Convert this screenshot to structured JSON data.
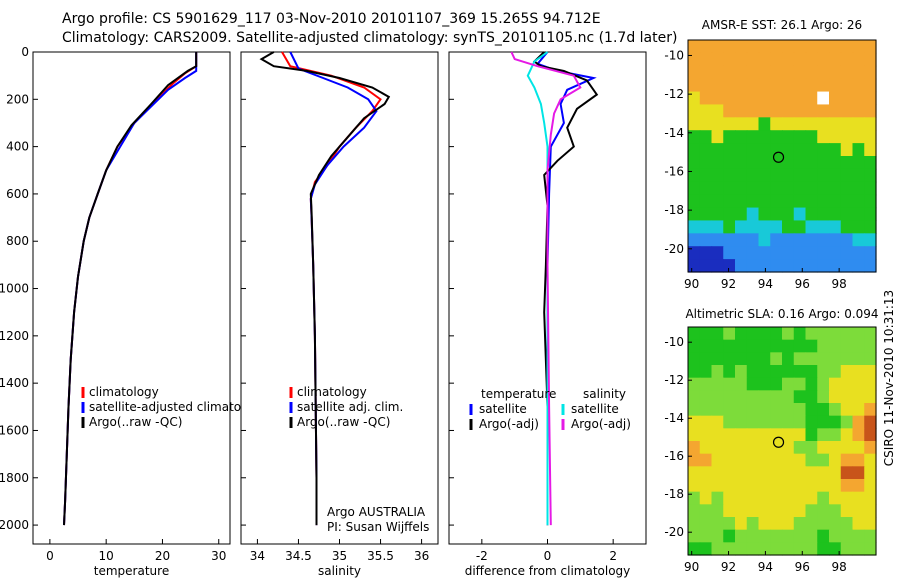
{
  "title": {
    "line1": "Argo profile: CS 5901629_117 03-Nov-2010 20101107_369 15.265S 94.712E",
    "line2": "Climatology: CARS2009. Satellite-adjusted climatology: synTS_20101105.nc (1.7d later)"
  },
  "stamp": "CSIRO 11-Nov-2010 10:31:13",
  "colors": {
    "climatology": "#ff0000",
    "satellite": "#0000ff",
    "argo": "#000000",
    "sal_satellite": "#00e5e5",
    "sal_argo": "#e519e5"
  },
  "chart_data": [
    {
      "type": "line",
      "xlabel": "temperature",
      "ylabel": "",
      "xlim": [
        -3,
        32
      ],
      "ylim": [
        2080,
        0
      ],
      "xticks": [
        0,
        10,
        20,
        30
      ],
      "yticks": [
        0,
        200,
        400,
        600,
        800,
        1000,
        1200,
        1400,
        1600,
        1800,
        2000
      ],
      "legend": [
        "climatology",
        "satellite-adjusted climatology",
        "Argo(..raw -QC)"
      ],
      "series": [
        {
          "name": "climatology",
          "color": "#ff0000",
          "points": [
            [
              26,
              0
            ],
            [
              26,
              60
            ],
            [
              24,
              90
            ],
            [
              22,
              130
            ],
            [
              19,
              200
            ],
            [
              15,
              300
            ],
            [
              12,
              400
            ],
            [
              10,
              500
            ],
            [
              8.5,
              600
            ],
            [
              7,
              700
            ],
            [
              6,
              800
            ],
            [
              5,
              950
            ],
            [
              4.3,
              1100
            ],
            [
              3.7,
              1300
            ],
            [
              3.3,
              1500
            ],
            [
              3,
              1700
            ],
            [
              2.7,
              1900
            ],
            [
              2.5,
              2000
            ]
          ]
        },
        {
          "name": "satellite-adjusted climatology",
          "color": "#0000ff",
          "points": [
            [
              26,
              0
            ],
            [
              26,
              80
            ],
            [
              24,
              110
            ],
            [
              21,
              160
            ],
            [
              18,
              230
            ],
            [
              15,
              300
            ],
            [
              12.5,
              400
            ],
            [
              10,
              500
            ],
            [
              8.5,
              600
            ],
            [
              7,
              700
            ],
            [
              6,
              800
            ],
            [
              5,
              950
            ],
            [
              4.3,
              1100
            ],
            [
              3.7,
              1300
            ],
            [
              3.3,
              1500
            ],
            [
              3,
              1700
            ],
            [
              2.7,
              1900
            ],
            [
              2.5,
              2000
            ]
          ]
        },
        {
          "name": "Argo(..raw -QC)",
          "color": "#000000",
          "points": [
            [
              26,
              0
            ],
            [
              26,
              60
            ],
            [
              24.5,
              80
            ],
            [
              21,
              140
            ],
            [
              18,
              220
            ],
            [
              14.5,
              310
            ],
            [
              12,
              400
            ],
            [
              10,
              500
            ],
            [
              8.5,
              600
            ],
            [
              7,
              700
            ],
            [
              6,
              800
            ],
            [
              5,
              950
            ],
            [
              4.3,
              1100
            ],
            [
              3.7,
              1300
            ],
            [
              3.3,
              1500
            ],
            [
              3,
              1700
            ],
            [
              2.7,
              1900
            ],
            [
              2.5,
              2000
            ]
          ]
        }
      ]
    },
    {
      "type": "line",
      "xlabel": "salinity",
      "xlim": [
        33.8,
        36.2
      ],
      "ylim": [
        2080,
        0
      ],
      "xticks": [
        34,
        34.5,
        35,
        35.5,
        36
      ],
      "yticks": [
        0,
        200,
        400,
        600,
        800,
        1000,
        1200,
        1400,
        1600,
        1800,
        2000
      ],
      "legend": [
        "climatology",
        "satellite adj. clim.",
        "Argo(..raw -QC)"
      ],
      "credit": [
        "Argo AUSTRALIA",
        "PI: Susan Wijffels"
      ],
      "series": [
        {
          "name": "climatology",
          "color": "#ff0000",
          "points": [
            [
              34.3,
              0
            ],
            [
              34.4,
              60
            ],
            [
              34.9,
              100
            ],
            [
              35.3,
              150
            ],
            [
              35.5,
              200
            ],
            [
              35.4,
              250
            ],
            [
              35.2,
              320
            ],
            [
              35.0,
              400
            ],
            [
              34.85,
              480
            ],
            [
              34.7,
              550
            ],
            [
              34.65,
              620
            ],
            [
              34.66,
              700
            ],
            [
              34.68,
              900
            ],
            [
              34.7,
              1200
            ],
            [
              34.71,
              1500
            ],
            [
              34.72,
              1800
            ],
            [
              34.72,
              2000
            ]
          ]
        },
        {
          "name": "satellite adj. clim.",
          "color": "#0000ff",
          "points": [
            [
              34.4,
              0
            ],
            [
              34.5,
              70
            ],
            [
              34.8,
              110
            ],
            [
              35.1,
              150
            ],
            [
              35.35,
              200
            ],
            [
              35.45,
              250
            ],
            [
              35.3,
              320
            ],
            [
              35.05,
              400
            ],
            [
              34.85,
              480
            ],
            [
              34.7,
              560
            ],
            [
              34.65,
              620
            ],
            [
              34.66,
              700
            ],
            [
              34.68,
              900
            ],
            [
              34.7,
              1200
            ],
            [
              34.71,
              1500
            ],
            [
              34.72,
              1800
            ],
            [
              34.72,
              2000
            ]
          ]
        },
        {
          "name": "Argo(..raw -QC)",
          "color": "#000000",
          "points": [
            [
              34.2,
              0
            ],
            [
              34.05,
              30
            ],
            [
              34.2,
              60
            ],
            [
              34.6,
              80
            ],
            [
              35.0,
              110
            ],
            [
              35.4,
              150
            ],
            [
              35.6,
              190
            ],
            [
              35.55,
              220
            ],
            [
              35.3,
              280
            ],
            [
              35.1,
              360
            ],
            [
              34.9,
              440
            ],
            [
              34.75,
              520
            ],
            [
              34.65,
              600
            ],
            [
              34.66,
              680
            ],
            [
              34.68,
              900
            ],
            [
              34.7,
              1200
            ],
            [
              34.71,
              1500
            ],
            [
              34.72,
              1800
            ],
            [
              34.72,
              2000
            ]
          ]
        }
      ]
    },
    {
      "type": "line",
      "xlabel": "difference from climatology",
      "xlim": [
        -3,
        3
      ],
      "ylim": [
        2080,
        0
      ],
      "xticks": [
        -2,
        0,
        2
      ],
      "yticks": [
        0,
        200,
        400,
        600,
        800,
        1000,
        1200,
        1400,
        1600,
        1800,
        2000
      ],
      "legend_groups": [
        {
          "heading": "temperature",
          "items": [
            "satellite",
            "Argo(-adj)"
          ]
        },
        {
          "heading": "salinity",
          "items": [
            "satellite",
            "Argo(-adj)"
          ]
        }
      ],
      "series": [
        {
          "name": "temperature satellite",
          "color": "#0000ff",
          "points": [
            [
              0,
              0
            ],
            [
              -0.3,
              50
            ],
            [
              0.3,
              80
            ],
            [
              1.4,
              110
            ],
            [
              0.6,
              160
            ],
            [
              0.4,
              220
            ],
            [
              0.5,
              300
            ],
            [
              0.1,
              400
            ],
            [
              0.05,
              600
            ],
            [
              0,
              900
            ],
            [
              0,
              1500
            ],
            [
              0,
              2000
            ]
          ]
        },
        {
          "name": "temperature Argo(-adj)",
          "color": "#000000",
          "points": [
            [
              -0.1,
              0
            ],
            [
              -0.4,
              40
            ],
            [
              -0.2,
              60
            ],
            [
              0.5,
              80
            ],
            [
              1.2,
              120
            ],
            [
              1.5,
              180
            ],
            [
              0.9,
              240
            ],
            [
              0.6,
              320
            ],
            [
              0.8,
              400
            ],
            [
              0.3,
              460
            ],
            [
              -0.1,
              520
            ],
            [
              0,
              650
            ],
            [
              -0.05,
              900
            ],
            [
              -0.1,
              1100
            ],
            [
              0,
              1500
            ],
            [
              0,
              2000
            ]
          ]
        },
        {
          "name": "salinity satellite",
          "color": "#00e5e5",
          "points": [
            [
              0,
              0
            ],
            [
              -0.4,
              40
            ],
            [
              -0.6,
              100
            ],
            [
              -0.4,
              150
            ],
            [
              -0.2,
              220
            ],
            [
              -0.1,
              300
            ],
            [
              0,
              400
            ],
            [
              0,
              700
            ],
            [
              0,
              1200
            ],
            [
              0,
              2000
            ]
          ]
        },
        {
          "name": "salinity Argo(-adj)",
          "color": "#e519e5",
          "points": [
            [
              -1.1,
              0
            ],
            [
              -1.0,
              30
            ],
            [
              -0.3,
              60
            ],
            [
              0.8,
              100
            ],
            [
              1.0,
              150
            ],
            [
              0.4,
              200
            ],
            [
              0.2,
              260
            ],
            [
              0.1,
              350
            ],
            [
              0,
              500
            ],
            [
              0,
              900
            ],
            [
              0.05,
              1500
            ],
            [
              0.1,
              2000
            ]
          ]
        }
      ]
    },
    {
      "type": "heatmap",
      "title": "AMSR-E SST: 26.1  Argo: 26",
      "xticks": [
        90,
        92,
        94,
        96,
        98
      ],
      "yticks": [
        -10,
        -12,
        -14,
        -16,
        -18,
        -20
      ],
      "xlim": [
        89.8,
        100
      ],
      "ylim": [
        -21.2,
        -9.2
      ],
      "marker": [
        94.712,
        -15.265
      ],
      "grid_rows": [
        "OOOOOOOOOOOOOOOO",
        "OOOOOOOOOOOOOOOO",
        "OOOOOOOOOOOOOOOO",
        "OOOOOOOOOOOOOOOO",
        "YOOOOOOOOOOWOOOO",
        "YYYOOOOOOOOOOOOO",
        "YYYYYYGYYYYYYYYY",
        "GGYGGGGGGGGYYYYY",
        "GGGGGGGGGGGGGYGY",
        "GGGGGGGGGGGGGGGG",
        "GGGGGGGGGGGGGGGG",
        "GGGGGGGGGGGGGGGG",
        "GGGGGGGGGGGGGGGG",
        "GGGGGCGGGCGGGGGG",
        "CCCGCCCCGGCCCGGG",
        "BBBBBBCBBBBBBBCC",
        "NNNBBBBBBBBBBBBB",
        "NNNNBBBBBBBBBBBB"
      ]
    },
    {
      "type": "heatmap",
      "title": "Altimetric SLA: 0.16  Argo: 0.094",
      "xticks": [
        90,
        92,
        94,
        96,
        98
      ],
      "yticks": [
        -10,
        -12,
        -14,
        -16,
        -18,
        -20
      ],
      "xlim": [
        89.8,
        100
      ],
      "ylim": [
        -21.2,
        -9.2
      ],
      "marker": [
        94.712,
        -15.265
      ],
      "grid_rows": [
        "GGGLGGGGLGLLLLLL",
        "GGGGGGGGGGGLLLLL",
        "GGGGGGGLGLLLLLLL",
        "GGLGLGGGGGGLLYYY",
        "LLLLLGGGLLGLYYYY",
        "LLLLLLLLLGGLYYYY",
        "LLLLLLLLLLGGLYYO",
        "YYYLLLLLLLGGGLOR",
        "YYYYYYYYYYGLLYOR",
        "OYYYYYYYYLLYYYYO",
        "OOYYYYYYYYLLYOOY",
        "YYYYYYYYYYYYYRRY",
        "YYYYYYYYYYYYYOOY",
        "LYLYYYYYYYYLYYYY",
        "LLLYYYYYYYLLLYYY",
        "LLLLYLYYYLLLLLYY",
        "LLLGLLLLLLLGLLLL",
        "GGLLLLLLLLLGGLLL"
      ]
    }
  ]
}
